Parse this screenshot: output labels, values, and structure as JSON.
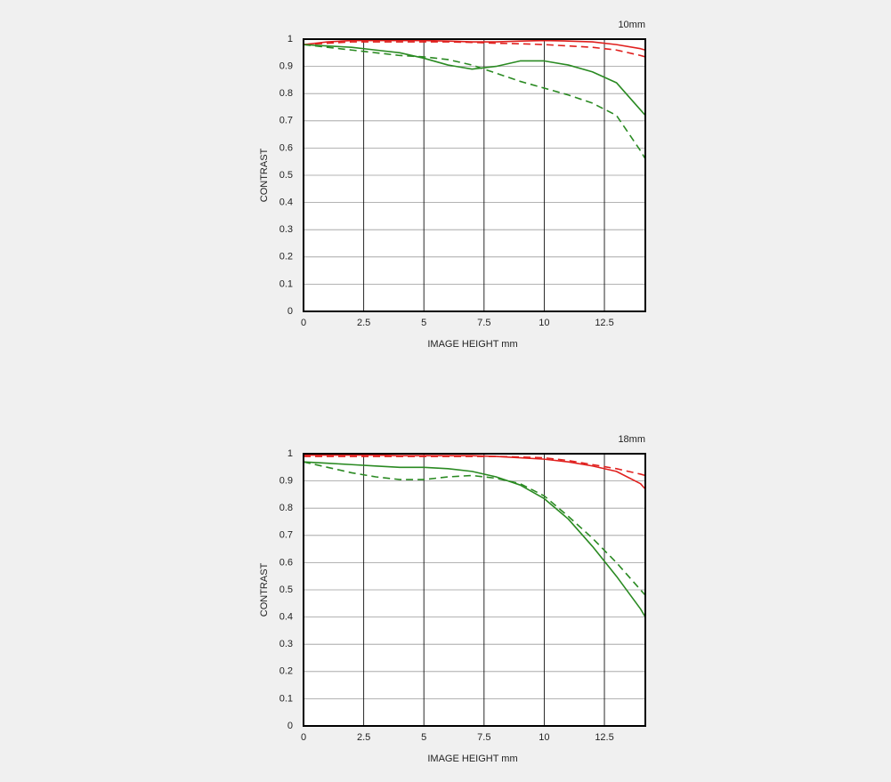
{
  "chart_data": [
    {
      "type": "line",
      "title": "10mm",
      "x_label": "IMAGE HEIGHT   mm",
      "y_label": "CONTRAST",
      "x": [
        0,
        1,
        2,
        3,
        4,
        5,
        6,
        7,
        8,
        9,
        10,
        11,
        12,
        13,
        14,
        14.2
      ],
      "xlim": [
        0,
        14.2
      ],
      "xticks": [
        0,
        2.5,
        5,
        7.5,
        10,
        12.5
      ],
      "ylim": [
        0,
        1
      ],
      "yticks": [
        0,
        0.1,
        0.2,
        0.3,
        0.4,
        0.5,
        0.6,
        0.7,
        0.8,
        0.9,
        1
      ],
      "grid": true,
      "series": [
        {
          "color": "#e0201e",
          "dashed": false,
          "values": [
            0.98,
            0.99,
            0.995,
            0.995,
            0.995,
            0.995,
            0.993,
            0.99,
            0.99,
            0.993,
            0.995,
            0.993,
            0.99,
            0.98,
            0.965,
            0.96
          ]
        },
        {
          "color": "#e0201e",
          "dashed": true,
          "values": [
            0.98,
            0.985,
            0.99,
            0.99,
            0.99,
            0.99,
            0.99,
            0.988,
            0.985,
            0.983,
            0.98,
            0.975,
            0.97,
            0.96,
            0.94,
            0.935
          ]
        },
        {
          "color": "#2a8a22",
          "dashed": false,
          "values": [
            0.98,
            0.975,
            0.97,
            0.96,
            0.95,
            0.93,
            0.905,
            0.89,
            0.9,
            0.92,
            0.92,
            0.905,
            0.88,
            0.84,
            0.74,
            0.72
          ]
        },
        {
          "color": "#2a8a22",
          "dashed": true,
          "values": [
            0.98,
            0.97,
            0.96,
            0.95,
            0.94,
            0.935,
            0.925,
            0.905,
            0.875,
            0.845,
            0.82,
            0.795,
            0.765,
            0.72,
            0.59,
            0.56
          ]
        }
      ]
    },
    {
      "type": "line",
      "title": "18mm",
      "x_label": "IMAGE HEIGHT   mm",
      "y_label": "CONTRAST",
      "x": [
        0,
        1,
        2,
        3,
        4,
        5,
        6,
        7,
        8,
        9,
        10,
        11,
        12,
        13,
        14,
        14.2
      ],
      "xlim": [
        0,
        14.2
      ],
      "xticks": [
        0,
        2.5,
        5,
        7.5,
        10,
        12.5
      ],
      "ylim": [
        0,
        1
      ],
      "yticks": [
        0,
        0.1,
        0.2,
        0.3,
        0.4,
        0.5,
        0.6,
        0.7,
        0.8,
        0.9,
        1
      ],
      "grid": true,
      "series": [
        {
          "color": "#e0201e",
          "dashed": false,
          "values": [
            0.995,
            0.995,
            0.995,
            0.995,
            0.993,
            0.993,
            0.993,
            0.993,
            0.99,
            0.985,
            0.98,
            0.97,
            0.955,
            0.935,
            0.89,
            0.87
          ]
        },
        {
          "color": "#e0201e",
          "dashed": true,
          "values": [
            0.99,
            0.99,
            0.99,
            0.99,
            0.99,
            0.99,
            0.99,
            0.99,
            0.99,
            0.988,
            0.985,
            0.975,
            0.96,
            0.945,
            0.925,
            0.92
          ]
        },
        {
          "color": "#2a8a22",
          "dashed": false,
          "values": [
            0.97,
            0.965,
            0.96,
            0.955,
            0.95,
            0.95,
            0.945,
            0.935,
            0.915,
            0.885,
            0.835,
            0.76,
            0.66,
            0.55,
            0.43,
            0.4
          ]
        },
        {
          "color": "#2a8a22",
          "dashed": true,
          "values": [
            0.97,
            0.95,
            0.93,
            0.915,
            0.905,
            0.905,
            0.915,
            0.92,
            0.91,
            0.89,
            0.845,
            0.77,
            0.69,
            0.6,
            0.5,
            0.48
          ]
        }
      ]
    }
  ]
}
